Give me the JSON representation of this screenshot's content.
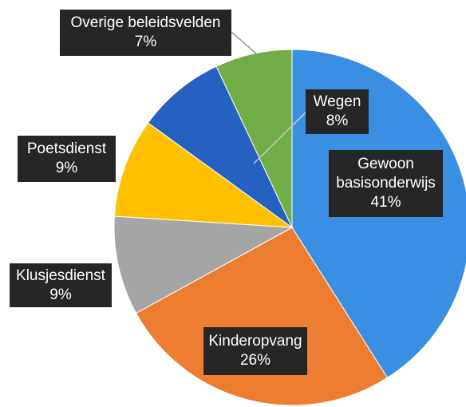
{
  "chart_data": {
    "type": "pie",
    "categories": [
      "Gewoon basisonderwijs",
      "Kinderopvang",
      "Klusjesdienst",
      "Poetsdienst",
      "Wegen",
      "Overige beleidsvelden"
    ],
    "values": [
      41,
      26,
      9,
      9,
      8,
      7
    ],
    "value_labels": [
      "41%",
      "26%",
      "9%",
      "9%",
      "8%",
      "7%"
    ],
    "colors": [
      "#3b8fe3",
      "#ed7d31",
      "#a5a5a5",
      "#ffc000",
      "#2461c0",
      "#70ad47"
    ]
  }
}
